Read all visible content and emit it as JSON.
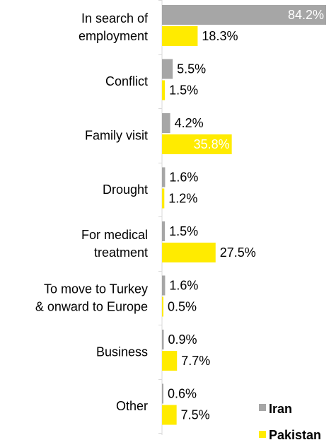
{
  "chart_data": {
    "type": "bar",
    "orientation": "horizontal",
    "categories": [
      [
        "In search of",
        "employment"
      ],
      [
        "Conflict"
      ],
      [
        "Family visit"
      ],
      [
        "Drought"
      ],
      [
        "For medical",
        "treatment"
      ],
      [
        "To move to Turkey",
        "& onward to Europe"
      ],
      [
        "Business"
      ],
      [
        "Other"
      ]
    ],
    "series": [
      {
        "name": "Iran",
        "color": "#a6a6a6",
        "values": [
          84.2,
          5.5,
          4.2,
          1.6,
          1.5,
          1.6,
          0.9,
          0.6
        ],
        "labels": [
          "84.2%",
          "5.5%",
          "4.2%",
          "1.6%",
          "1.5%",
          "1.6%",
          "0.9%",
          "0.6%"
        ]
      },
      {
        "name": "Pakistan",
        "color": "#ffeb00",
        "values": [
          18.3,
          1.5,
          35.8,
          1.2,
          27.5,
          0.5,
          7.7,
          7.5
        ],
        "labels": [
          "18.3%",
          "1.5%",
          "35.8%",
          "1.2%",
          "27.5%",
          "0.5%",
          "7.7%",
          "7.5%"
        ]
      }
    ],
    "title": "",
    "xlabel": "",
    "ylabel": "",
    "xlim": [
      0,
      84.2
    ],
    "grid": false,
    "legend": "bottom-right"
  }
}
